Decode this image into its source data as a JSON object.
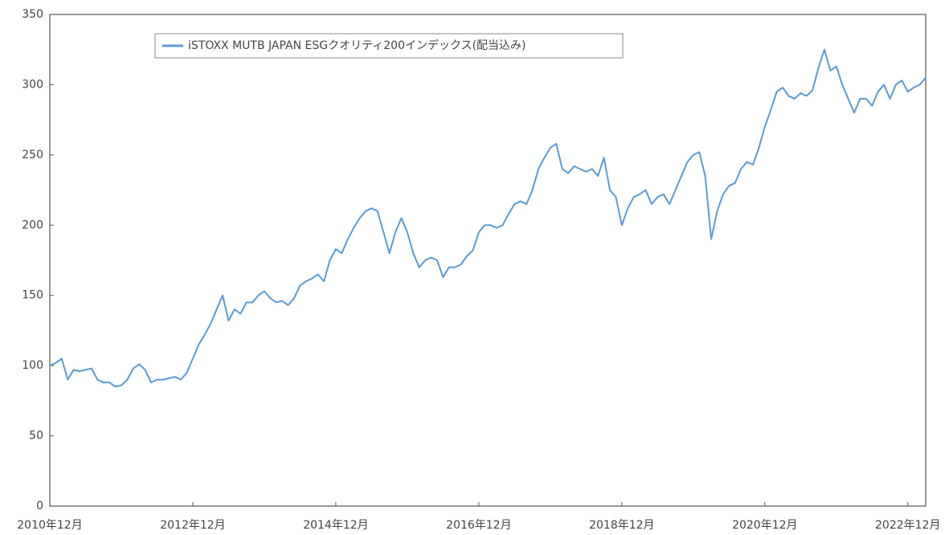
{
  "chart_data": {
    "type": "line",
    "x": [
      "2010-12",
      "2011-01",
      "2011-02",
      "2011-03",
      "2011-04",
      "2011-05",
      "2011-06",
      "2011-07",
      "2011-08",
      "2011-09",
      "2011-10",
      "2011-11",
      "2011-12",
      "2012-01",
      "2012-02",
      "2012-03",
      "2012-04",
      "2012-05",
      "2012-06",
      "2012-07",
      "2012-08",
      "2012-09",
      "2012-10",
      "2012-11",
      "2012-12",
      "2013-01",
      "2013-02",
      "2013-03",
      "2013-04",
      "2013-05",
      "2013-06",
      "2013-07",
      "2013-08",
      "2013-09",
      "2013-10",
      "2013-11",
      "2013-12",
      "2014-01",
      "2014-02",
      "2014-03",
      "2014-04",
      "2014-05",
      "2014-06",
      "2014-07",
      "2014-08",
      "2014-09",
      "2014-10",
      "2014-11",
      "2014-12",
      "2015-01",
      "2015-02",
      "2015-03",
      "2015-04",
      "2015-05",
      "2015-06",
      "2015-07",
      "2015-08",
      "2015-09",
      "2015-10",
      "2015-11",
      "2015-12",
      "2016-01",
      "2016-02",
      "2016-03",
      "2016-04",
      "2016-05",
      "2016-06",
      "2016-07",
      "2016-08",
      "2016-09",
      "2016-10",
      "2016-11",
      "2016-12",
      "2017-01",
      "2017-02",
      "2017-03",
      "2017-04",
      "2017-05",
      "2017-06",
      "2017-07",
      "2017-08",
      "2017-09",
      "2017-10",
      "2017-11",
      "2017-12",
      "2018-01",
      "2018-02",
      "2018-03",
      "2018-04",
      "2018-05",
      "2018-06",
      "2018-07",
      "2018-08",
      "2018-09",
      "2018-10",
      "2018-11",
      "2018-12",
      "2019-01",
      "2019-02",
      "2019-03",
      "2019-04",
      "2019-05",
      "2019-06",
      "2019-07",
      "2019-08",
      "2019-09",
      "2019-10",
      "2019-11",
      "2019-12",
      "2020-01",
      "2020-02",
      "2020-03",
      "2020-04",
      "2020-05",
      "2020-06",
      "2020-07",
      "2020-08",
      "2020-09",
      "2020-10",
      "2020-11",
      "2020-12",
      "2021-01",
      "2021-02",
      "2021-03",
      "2021-04",
      "2021-05",
      "2021-06",
      "2021-07",
      "2021-08",
      "2021-09",
      "2021-10",
      "2021-11",
      "2021-12",
      "2022-01",
      "2022-02",
      "2022-03",
      "2022-04",
      "2022-05",
      "2022-06",
      "2022-07",
      "2022-08",
      "2022-09",
      "2022-10",
      "2022-11",
      "2022-12",
      "2023-01",
      "2023-02",
      "2023-03"
    ],
    "series": [
      {
        "name": "iSTOXX MUTB JAPAN ESGクオリティ200インデックス(配当込み)",
        "color": "#5b9bd5",
        "values": [
          100,
          102,
          105,
          90,
          97,
          96,
          97,
          98,
          90,
          88,
          88,
          85,
          86,
          90,
          98,
          101,
          97,
          88,
          90,
          90,
          91,
          92,
          90,
          95,
          105,
          115,
          122,
          130,
          140,
          150,
          132,
          140,
          137,
          145,
          145,
          150,
          153,
          148,
          145,
          146,
          143,
          148,
          157,
          160,
          162,
          165,
          160,
          175,
          183,
          180,
          190,
          198,
          205,
          210,
          212,
          210,
          195,
          180,
          195,
          205,
          195,
          180,
          170,
          175,
          177,
          175,
          163,
          170,
          170,
          172,
          178,
          182,
          195,
          200,
          200,
          198,
          200,
          208,
          215,
          217,
          215,
          225,
          240,
          248,
          255,
          258,
          240,
          237,
          242,
          240,
          238,
          240,
          235,
          248,
          225,
          220,
          200,
          212,
          220,
          222,
          225,
          215,
          220,
          222,
          215,
          225,
          235,
          245,
          250,
          252,
          235,
          190,
          210,
          222,
          228,
          230,
          240,
          245,
          243,
          255,
          270,
          282,
          295,
          298,
          292,
          290,
          294,
          292,
          296,
          312,
          325,
          310,
          313,
          300,
          290,
          280,
          290,
          290,
          285,
          295,
          300,
          290,
          300,
          303,
          295,
          298,
          300,
          305
        ]
      }
    ],
    "xlim": [
      "2010-12",
      "2023-03"
    ],
    "xticks": [
      {
        "value": "2010-12",
        "label": "2010年12月"
      },
      {
        "value": "2012-12",
        "label": "2012年12月"
      },
      {
        "value": "2014-12",
        "label": "2014年12月"
      },
      {
        "value": "2016-12",
        "label": "2016年12月"
      },
      {
        "value": "2018-12",
        "label": "2018年12月"
      },
      {
        "value": "2020-12",
        "label": "2020年12月"
      },
      {
        "value": "2022-12",
        "label": "2022年12月"
      }
    ],
    "ylim": [
      0,
      350
    ],
    "yticks": [
      0,
      50,
      100,
      150,
      200,
      250,
      300,
      350
    ],
    "grid": false,
    "legend": "upper left"
  }
}
